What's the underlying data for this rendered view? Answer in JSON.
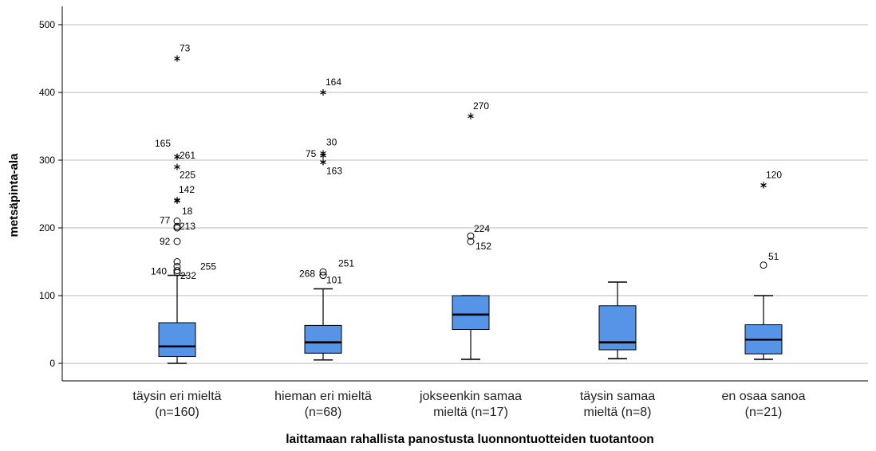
{
  "chart_data": {
    "type": "boxplot",
    "title": "",
    "xlabel": "laittamaan rahallista panostusta luonnontuotteiden tuotantoon",
    "ylabel": "metsäpinta-ala",
    "ylim": [
      0,
      500
    ],
    "yticks": [
      0,
      100,
      200,
      300,
      400,
      500
    ],
    "grid": "horizontal",
    "box_color": "#5594e6",
    "categories": [
      {
        "label_lines": [
          "täysin eri mieltä",
          "(n=160)"
        ],
        "min": 0,
        "q1": 10,
        "median": 25,
        "q3": 60,
        "max": 130,
        "outliers": [
          {
            "value": 150,
            "kind": "circle",
            "label": ""
          },
          {
            "value": 143,
            "kind": "circle",
            "label": "140"
          },
          {
            "value": 137,
            "kind": "circle",
            "label": "255"
          },
          {
            "value": 134,
            "kind": "circle",
            "label": "232"
          },
          {
            "value": 180,
            "kind": "circle",
            "label": "92"
          },
          {
            "value": 200,
            "kind": "circle",
            "label": "213"
          },
          {
            "value": 202,
            "kind": "circle",
            "label": ""
          },
          {
            "value": 210,
            "kind": "circle",
            "label": "77"
          },
          {
            "value": 240,
            "kind": "star",
            "label": "18"
          },
          {
            "value": 241,
            "kind": "star",
            "label": "142"
          },
          {
            "value": 290,
            "kind": "star",
            "label": "225"
          },
          {
            "value": 305,
            "kind": "star",
            "label": "165"
          },
          {
            "value": 305,
            "kind": "star",
            "label": "261"
          },
          {
            "value": 450,
            "kind": "star",
            "label": "73"
          }
        ]
      },
      {
        "label_lines": [
          "hieman eri mieltä",
          "(n=68)"
        ],
        "min": 5,
        "q1": 15,
        "median": 31,
        "q3": 56,
        "max": 110,
        "outliers": [
          {
            "value": 130,
            "kind": "circle",
            "label": "268"
          },
          {
            "value": 135,
            "kind": "circle",
            "label": "251"
          },
          {
            "value": 130,
            "kind": "circle",
            "label": "101"
          },
          {
            "value": 307,
            "kind": "star",
            "label": "75"
          },
          {
            "value": 310,
            "kind": "star",
            "label": "30"
          },
          {
            "value": 297,
            "kind": "star",
            "label": "163"
          },
          {
            "value": 400,
            "kind": "star",
            "label": "164"
          }
        ]
      },
      {
        "label_lines": [
          "jokseenkin samaa",
          "mieltä (n=17)"
        ],
        "min": 6,
        "q1": 50,
        "median": 72,
        "q3": 100,
        "max": 100,
        "outliers": [
          {
            "value": 188,
            "kind": "circle",
            "label": "224"
          },
          {
            "value": 180,
            "kind": "circle",
            "label": "152"
          },
          {
            "value": 365,
            "kind": "star",
            "label": "270"
          }
        ]
      },
      {
        "label_lines": [
          "täysin samaa",
          "mieltä (n=8)"
        ],
        "min": 7,
        "q1": 20,
        "median": 31,
        "q3": 85,
        "max": 120,
        "outliers": []
      },
      {
        "label_lines": [
          "en osaa sanoa",
          "(n=21)"
        ],
        "min": 6,
        "q1": 14,
        "median": 35,
        "q3": 57,
        "max": 100,
        "outliers": [
          {
            "value": 145,
            "kind": "circle",
            "label": "51"
          },
          {
            "value": 263,
            "kind": "star",
            "label": "120"
          }
        ]
      }
    ]
  }
}
